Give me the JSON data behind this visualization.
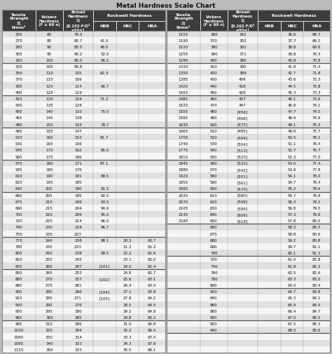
{
  "title": "Metal Hardness Scale Chart",
  "left_data": [
    [
      "255",
      "80",
      "76.0",
      "",
      "",
      ""
    ],
    [
      "270",
      "85",
      "80.7",
      "41.0",
      "",
      ""
    ],
    [
      "285",
      "90",
      "85.5",
      "48.0",
      "",
      ""
    ],
    [
      "305",
      "95",
      "90.2",
      "52.0",
      "",
      ""
    ],
    [
      "320",
      "100",
      "95.0",
      "56.2",
      "",
      ""
    ],
    [
      "335",
      "105",
      "99.8",
      "",
      "",
      ""
    ],
    [
      "350",
      "110",
      "105",
      "62.3",
      "",
      ""
    ],
    [
      "370",
      "115",
      "109",
      "",
      "",
      ""
    ],
    [
      "395",
      "120",
      "114",
      "66.7",
      "",
      ""
    ],
    [
      "400",
      "125",
      "119",
      "",
      "",
      ""
    ],
    [
      "415",
      "130",
      "124",
      "71.2",
      "",
      ""
    ],
    [
      "430",
      "135",
      "128",
      "",
      "",
      ""
    ],
    [
      "450",
      "140",
      "133",
      "75.0",
      "",
      ""
    ],
    [
      "465",
      "145",
      "138",
      "",
      "",
      ""
    ],
    [
      "480",
      "150",
      "143",
      "78.7",
      "",
      ""
    ],
    [
      "495",
      "155",
      "147",
      "",
      "",
      ""
    ],
    [
      "510",
      "160",
      "152",
      "81.7",
      "",
      ""
    ],
    [
      "530",
      "165",
      "156",
      "",
      "",
      ""
    ],
    [
      "545",
      "170",
      "162",
      "85.0",
      "",
      ""
    ],
    [
      "560",
      "175",
      "166",
      "",
      "",
      ""
    ],
    [
      "575",
      "180",
      "171",
      "87.1",
      "",
      ""
    ],
    [
      "595",
      "185",
      "176",
      "",
      "",
      ""
    ],
    [
      "610",
      "190",
      "181",
      "89.5",
      "",
      ""
    ],
    [
      "625",
      "195",
      "185",
      "",
      "",
      ""
    ],
    [
      "640",
      "200",
      "190",
      "91.5",
      "",
      ""
    ],
    [
      "660",
      "205",
      "195",
      "92.5",
      "",
      ""
    ],
    [
      "675",
      "210",
      "199",
      "93.5",
      "",
      ""
    ],
    [
      "690",
      "215",
      "204",
      "94.0",
      "",
      ""
    ],
    [
      "705",
      "220",
      "209",
      "95.0",
      "",
      ""
    ],
    [
      "720",
      "225",
      "214",
      "96.0",
      "",
      ""
    ],
    [
      "740",
      "230",
      "219",
      "96.7",
      "",
      ""
    ],
    [
      "755",
      "235",
      "223",
      "",
      "",
      ""
    ],
    [
      "770",
      "240",
      "228",
      "98.1",
      "20.3",
      "60.7"
    ],
    [
      "785",
      "245",
      "233",
      "",
      "21.3",
      "61.2"
    ],
    [
      "800",
      "250",
      "238",
      "99.5",
      "22.2",
      "61.6"
    ],
    [
      "820",
      "255",
      "242",
      "",
      "23.1",
      "62.0"
    ],
    [
      "835",
      "260",
      "247",
      "[101]",
      "24.0",
      "62.4"
    ],
    [
      "850",
      "265",
      "252",
      "",
      "24.8",
      "62.7"
    ],
    [
      "865",
      "270",
      "257",
      "[102]",
      "25.6",
      "63.1"
    ],
    [
      "880",
      "275",
      "261",
      "",
      "26.4",
      "63.5"
    ],
    [
      "900",
      "280",
      "266",
      "[104]",
      "27.1",
      "63.8"
    ],
    [
      "915",
      "285",
      "271",
      "[105]",
      "27.8",
      "64.2"
    ],
    [
      "930",
      "290",
      "276",
      "",
      "28.5",
      "64.5"
    ],
    [
      "950",
      "295",
      "280",
      "",
      "29.2",
      "64.8"
    ],
    [
      "965",
      "300",
      "285",
      "",
      "29.8",
      "65.2"
    ],
    [
      "995",
      "310",
      "295",
      "",
      "31.0",
      "65.8"
    ],
    [
      "1030",
      "320",
      "304",
      "",
      "32.2",
      "66.4"
    ],
    [
      "1060",
      "330",
      "314",
      "",
      "33.3",
      "67.0"
    ],
    [
      "1095",
      "340",
      "323",
      "",
      "34.3",
      "67.6"
    ],
    [
      "1125",
      "350",
      "333",
      "",
      "35.5",
      "68.1"
    ]
  ],
  "right_data": [
    [
      "1155",
      "360",
      "342",
      "",
      "36.6",
      "68.7"
    ],
    [
      "1190",
      "370",
      "352",
      "",
      "37.7",
      "69.2"
    ],
    [
      "1220",
      "380",
      "361",
      "",
      "38.8",
      "69.8"
    ],
    [
      "1255",
      "390",
      "371",
      "",
      "39.8",
      "70.3"
    ],
    [
      "1290",
      "400",
      "380",
      "",
      "40.8",
      "70.8"
    ],
    [
      "1320",
      "410",
      "390",
      "",
      "41.8",
      "71.4"
    ],
    [
      "1350",
      "420",
      "399",
      "",
      "42.7",
      "71.8"
    ],
    [
      "1385",
      "430",
      "409",
      "",
      "43.6",
      "72.3"
    ],
    [
      "1420",
      "440",
      "418",
      "",
      "44.5",
      "72.8"
    ],
    [
      "1455",
      "450",
      "428",
      "",
      "45.3",
      "73.3"
    ],
    [
      "1485",
      "460",
      "437",
      "",
      "46.1",
      "73.6"
    ],
    [
      "1520",
      "470",
      "447",
      "",
      "46.9",
      "74.1"
    ],
    [
      "1555",
      "480",
      "[456]",
      "",
      "47.7",
      "74.5"
    ],
    [
      "1595",
      "490",
      "[466]",
      "",
      "48.4",
      "74.9"
    ],
    [
      "1630",
      "500",
      "[475]",
      "",
      "49.1",
      "75.3"
    ],
    [
      "1665",
      "510",
      "[485]",
      "",
      "49.8",
      "75.7"
    ],
    [
      "1700",
      "520",
      "[494]",
      "",
      "50.5",
      "76.1"
    ],
    [
      "1740",
      "530",
      "[504]",
      "",
      "51.1",
      "76.4"
    ],
    [
      "1775",
      "540",
      "[513]",
      "",
      "51.7",
      "76.7"
    ],
    [
      "1810",
      "550",
      "[523]",
      "",
      "52.3",
      "77.0"
    ],
    [
      "1845",
      "560",
      "[532]",
      "",
      "53.0",
      "77.4"
    ],
    [
      "1880",
      "570",
      "[542]",
      "",
      "53.6",
      "77.8"
    ],
    [
      "1920",
      "580",
      "[551]",
      "",
      "54.1",
      "78.0"
    ],
    [
      "1955",
      "590",
      "[561]",
      "",
      "54.7",
      "78.4"
    ],
    [
      "1995",
      "600",
      "[570]",
      "",
      "55.2",
      "78.6"
    ],
    [
      "2030",
      "610",
      "[580]",
      "",
      "55.7",
      "78.9"
    ],
    [
      "2070",
      "620",
      "[599]",
      "",
      "56.3",
      "79.2"
    ],
    [
      "2105",
      "630",
      "[599]",
      "",
      "56.8",
      "79.5"
    ],
    [
      "2145",
      "640",
      "[608]",
      "",
      "57.3",
      "79.8"
    ],
    [
      "2180",
      "650",
      "[618]",
      "",
      "57.8",
      "80.0"
    ],
    [
      "",
      "660",
      "",
      "",
      "58.3",
      "80.3"
    ],
    [
      "",
      "670",
      "",
      "",
      "58.8",
      "80.6"
    ],
    [
      "",
      "680",
      "",
      "",
      "59.2",
      "80.8"
    ],
    [
      "",
      "690",
      "",
      "",
      "59.7",
      "81.1"
    ],
    [
      "",
      "700",
      "",
      "",
      "60.1",
      "81.3"
    ],
    [
      "",
      "720",
      "",
      "",
      "61.0",
      "81.8"
    ],
    [
      "",
      "740",
      "",
      "",
      "61.8",
      "82.2"
    ],
    [
      "",
      "760",
      "",
      "",
      "62.5",
      "82.6"
    ],
    [
      "",
      "780",
      "",
      "",
      "63.3",
      "83.0"
    ],
    [
      "",
      "800",
      "",
      "",
      "64.0",
      "83.4"
    ],
    [
      "",
      "820",
      "",
      "",
      "64.7",
      "83.8"
    ],
    [
      "",
      "840",
      "",
      "",
      "65.3",
      "84.1"
    ],
    [
      "",
      "860",
      "",
      "",
      "65.9",
      "84.4"
    ],
    [
      "",
      "880",
      "",
      "",
      "66.4",
      "84.7"
    ],
    [
      "",
      "900",
      "",
      "",
      "67.0",
      "85.0"
    ],
    [
      "",
      "920",
      "",
      "",
      "67.5",
      "85.3"
    ],
    [
      "",
      "940",
      "",
      "",
      "68.0",
      "85.6"
    ],
    [
      "",
      "",
      "",
      "",
      "",
      ""
    ],
    [
      "",
      "",
      "",
      "",
      "",
      ""
    ],
    [
      "",
      "",
      "",
      "",
      "",
      ""
    ]
  ],
  "separator_rows_left": [
    4,
    9,
    14,
    19,
    24,
    31,
    36,
    44
  ],
  "separator_rows_right": [
    4,
    9,
    14,
    19,
    24,
    29,
    34,
    39,
    44,
    46
  ],
  "header_bg": "#3c3c3c",
  "row_bg_even": "#e0e0e0",
  "row_bg_odd": "#f5f5f5",
  "border_color": "#888888",
  "sep_line_color": "#555555",
  "text_color": "#111111",
  "header_text_color": "#ffffff",
  "fig_bg": "#bbbbbb",
  "n_rows": 50,
  "col_props": [
    0.205,
    0.168,
    0.185,
    0.14,
    0.14,
    0.162
  ],
  "font_size_data": 4.1,
  "font_size_header_main": 4.0,
  "font_size_header_sub": 4.3
}
